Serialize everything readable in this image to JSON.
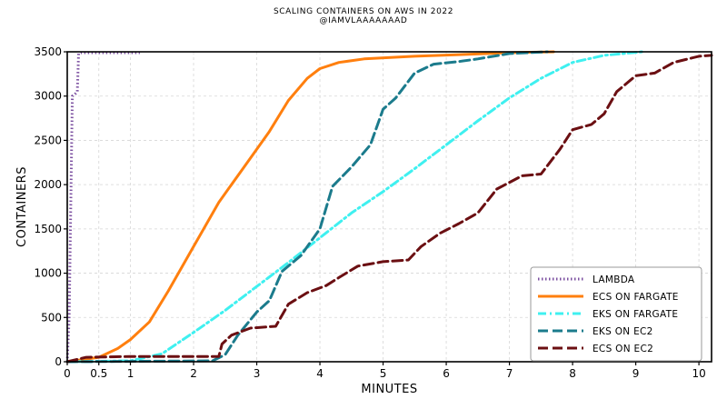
{
  "chart_data": {
    "type": "line",
    "title": "SCALING CONTAINERS ON AWS IN 2022",
    "subtitle": "@IAMVLAAAAAAAD",
    "xlabel": "MINUTES",
    "ylabel": "CONTAINERS",
    "xlim": [
      0,
      10.2
    ],
    "ylim": [
      0,
      3500
    ],
    "x_ticks": [
      0,
      0.5,
      1,
      2,
      3,
      4,
      5,
      6,
      7,
      8,
      9,
      10
    ],
    "x_tick_labels": [
      "0",
      "0.5",
      "1",
      "2",
      "3",
      "4",
      "5",
      "6",
      "7",
      "8",
      "9",
      "10"
    ],
    "y_ticks": [
      0,
      500,
      1000,
      1500,
      2000,
      2500,
      3000,
      3500
    ],
    "y_tick_labels": [
      "0",
      "500",
      "1000",
      "1500",
      "2000",
      "2500",
      "3000",
      "3500"
    ],
    "grid": true,
    "legend_position": "lower-right",
    "series": [
      {
        "name": "LAMBDA",
        "color": "#7b4fa0",
        "style": "dotted",
        "points": [
          [
            0,
            0
          ],
          [
            0.03,
            500
          ],
          [
            0.06,
            2000
          ],
          [
            0.08,
            3000
          ],
          [
            0.12,
            3020
          ],
          [
            0.16,
            3050
          ],
          [
            0.18,
            3480
          ],
          [
            0.22,
            3490
          ],
          [
            1.15,
            3490
          ]
        ]
      },
      {
        "name": "ECS ON FARGATE",
        "color": "#ff7f0e",
        "style": "solid",
        "points": [
          [
            0,
            0
          ],
          [
            0.5,
            50
          ],
          [
            0.8,
            150
          ],
          [
            1.0,
            250
          ],
          [
            1.3,
            450
          ],
          [
            1.6,
            800
          ],
          [
            2.0,
            1300
          ],
          [
            2.4,
            1800
          ],
          [
            2.8,
            2200
          ],
          [
            3.2,
            2600
          ],
          [
            3.5,
            2950
          ],
          [
            3.8,
            3200
          ],
          [
            4.0,
            3310
          ],
          [
            4.3,
            3380
          ],
          [
            4.7,
            3420
          ],
          [
            5.5,
            3450
          ],
          [
            6.3,
            3470
          ],
          [
            7.0,
            3490
          ],
          [
            7.7,
            3500
          ]
        ]
      },
      {
        "name": "EKS ON FARGATE",
        "color": "#3ff0f0",
        "style": "dashdot",
        "points": [
          [
            0,
            0
          ],
          [
            1.0,
            10
          ],
          [
            1.5,
            90
          ],
          [
            2.0,
            330
          ],
          [
            2.5,
            580
          ],
          [
            3.0,
            850
          ],
          [
            3.5,
            1120
          ],
          [
            4.0,
            1400
          ],
          [
            4.5,
            1680
          ],
          [
            5.0,
            1920
          ],
          [
            5.5,
            2180
          ],
          [
            6.0,
            2450
          ],
          [
            6.5,
            2720
          ],
          [
            7.0,
            2980
          ],
          [
            7.5,
            3200
          ],
          [
            8.0,
            3380
          ],
          [
            8.5,
            3460
          ],
          [
            9.1,
            3500
          ]
        ]
      },
      {
        "name": "EKS ON EC2",
        "color": "#1b7b8c",
        "style": "dashed",
        "points": [
          [
            0,
            0
          ],
          [
            2.3,
            10
          ],
          [
            2.5,
            80
          ],
          [
            2.7,
            300
          ],
          [
            3.0,
            560
          ],
          [
            3.2,
            690
          ],
          [
            3.4,
            1020
          ],
          [
            3.7,
            1200
          ],
          [
            4.0,
            1500
          ],
          [
            4.2,
            1980
          ],
          [
            4.5,
            2200
          ],
          [
            4.8,
            2450
          ],
          [
            5.0,
            2850
          ],
          [
            5.2,
            2980
          ],
          [
            5.5,
            3260
          ],
          [
            5.8,
            3360
          ],
          [
            6.2,
            3390
          ],
          [
            6.5,
            3420
          ],
          [
            7.0,
            3480
          ],
          [
            7.6,
            3500
          ]
        ]
      },
      {
        "name": "ECS ON EC2",
        "color": "#6b0f12",
        "style": "dashed",
        "points": [
          [
            0,
            0
          ],
          [
            0.3,
            50
          ],
          [
            1.0,
            60
          ],
          [
            2.4,
            60
          ],
          [
            2.45,
            200
          ],
          [
            2.6,
            300
          ],
          [
            2.9,
            380
          ],
          [
            3.3,
            400
          ],
          [
            3.5,
            650
          ],
          [
            3.8,
            780
          ],
          [
            4.1,
            860
          ],
          [
            4.3,
            950
          ],
          [
            4.6,
            1080
          ],
          [
            5.0,
            1130
          ],
          [
            5.4,
            1150
          ],
          [
            5.6,
            1300
          ],
          [
            5.9,
            1450
          ],
          [
            6.2,
            1560
          ],
          [
            6.5,
            1680
          ],
          [
            6.8,
            1950
          ],
          [
            7.2,
            2100
          ],
          [
            7.5,
            2120
          ],
          [
            7.8,
            2400
          ],
          [
            8.0,
            2620
          ],
          [
            8.3,
            2680
          ],
          [
            8.5,
            2800
          ],
          [
            8.7,
            3050
          ],
          [
            9.0,
            3230
          ],
          [
            9.3,
            3260
          ],
          [
            9.6,
            3380
          ],
          [
            10.0,
            3450
          ],
          [
            10.2,
            3460
          ]
        ]
      }
    ]
  }
}
